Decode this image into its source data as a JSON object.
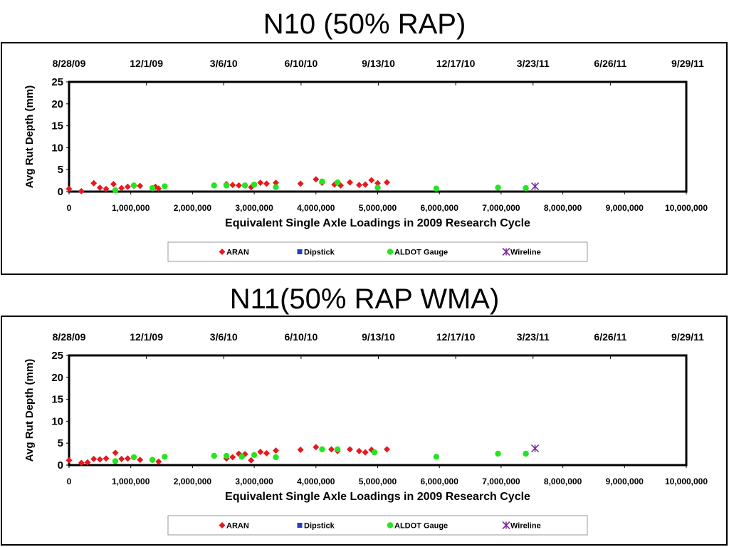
{
  "slide": {
    "title1": "N10 (50% RAP)",
    "title2": "N11(50% RAP WMA)"
  },
  "colors": {
    "aran": "#e8191e",
    "dipstick": "#1f3fc8",
    "aldot": "#22e61f",
    "wireline": "#7b2d9e"
  },
  "chart_data": [
    {
      "type": "scatter",
      "title": "N10 (50% RAP)",
      "xlabel": "Equivalent Single Axle Loadings in 2009 Research Cycle",
      "ylabel": "Avg Rut Depth (mm)",
      "xlim": [
        0,
        10000000
      ],
      "ylim": [
        0,
        25
      ],
      "x_ticks": [
        "0",
        "1,000,000",
        "2,000,000",
        "3,000,000",
        "4,000,000",
        "5,000,000",
        "6,000,000",
        "7,000,000",
        "8,000,000",
        "9,000,000",
        "10,000,000"
      ],
      "y_ticks": [
        "0",
        "5",
        "10",
        "15",
        "20",
        "25"
      ],
      "top_axis_ticks": [
        "8/28/09",
        "12/1/09",
        "3/6/10",
        "6/10/10",
        "9/13/10",
        "12/17/10",
        "3/23/11",
        "6/26/11",
        "9/29/11"
      ],
      "grid": false,
      "legend_position": "bottom",
      "series": [
        {
          "name": "ARAN",
          "marker": "diamond",
          "color": "#e8191e",
          "x": [
            0,
            200000,
            400000,
            500000,
            600000,
            720000,
            850000,
            950000,
            1050000,
            1150000,
            1400000,
            1450000,
            2550000,
            2650000,
            2750000,
            2950000,
            3100000,
            3200000,
            3350000,
            3750000,
            4000000,
            4100000,
            4300000,
            4400000,
            4550000,
            4700000,
            4800000,
            4900000,
            5000000,
            5150000
          ],
          "y": [
            0.6,
            0.1,
            1.9,
            0.9,
            0.6,
            1.7,
            0.8,
            1.1,
            1.3,
            1.3,
            1.1,
            0.7,
            1.7,
            1.5,
            1.4,
            1.0,
            2.0,
            1.8,
            2.0,
            1.8,
            2.8,
            2.0,
            1.6,
            1.4,
            2.1,
            1.5,
            1.6,
            2.6,
            1.9,
            2.1
          ]
        },
        {
          "name": "Dipstick",
          "marker": "square",
          "color": "#1f3fc8",
          "x": [],
          "y": []
        },
        {
          "name": "ALDOT Gauge",
          "marker": "circle",
          "color": "#22e61f",
          "x": [
            750000,
            1050000,
            1350000,
            1550000,
            2350000,
            2550000,
            2850000,
            3000000,
            3350000,
            4100000,
            4350000,
            5000000,
            5950000,
            6950000,
            7400000
          ],
          "y": [
            0.3,
            1.4,
            0.8,
            1.2,
            1.4,
            1.4,
            1.4,
            1.6,
            1.0,
            2.3,
            2.1,
            0.9,
            0.7,
            0.9,
            0.8
          ]
        },
        {
          "name": "Wireline",
          "marker": "asterisk",
          "color": "#7b2d9e",
          "x": [
            7550000
          ],
          "y": [
            1.2
          ]
        }
      ]
    },
    {
      "type": "scatter",
      "title": "N11(50% RAP WMA)",
      "xlabel": "Equivalent Single Axle Loadings in 2009 Research Cycle",
      "ylabel": "Avg Rut Depth (mm)",
      "xlim": [
        0,
        10000000
      ],
      "ylim": [
        0,
        25
      ],
      "x_ticks": [
        "0",
        "1,000,000",
        "2,000,000",
        "3,000,000",
        "4,000,000",
        "5,000,000",
        "6,000,000",
        "7,000,000",
        "8,000,000",
        "9,000,000",
        "10,000,000"
      ],
      "y_ticks": [
        "0",
        "5",
        "10",
        "15",
        "20",
        "25"
      ],
      "top_axis_ticks": [
        "8/28/09",
        "12/1/09",
        "3/6/10",
        "6/10/10",
        "9/13/10",
        "12/17/10",
        "3/23/11",
        "6/26/11",
        "9/29/11"
      ],
      "grid": false,
      "legend_position": "bottom",
      "series": [
        {
          "name": "ARAN",
          "marker": "diamond",
          "color": "#e8191e",
          "x": [
            0,
            200000,
            300000,
            400000,
            500000,
            600000,
            750000,
            850000,
            950000,
            1150000,
            1350000,
            1450000,
            2550000,
            2650000,
            2750000,
            2850000,
            2950000,
            3100000,
            3200000,
            3350000,
            3750000,
            4000000,
            4250000,
            4350000,
            4550000,
            4700000,
            4800000,
            4900000,
            5150000
          ],
          "y": [
            1.1,
            0.5,
            0.6,
            1.4,
            1.3,
            1.5,
            2.8,
            1.4,
            1.5,
            1.2,
            1.2,
            0.8,
            1.5,
            1.8,
            2.6,
            2.5,
            1.1,
            3.0,
            2.7,
            3.3,
            3.5,
            4.1,
            3.6,
            3.2,
            3.6,
            3.2,
            2.9,
            3.5,
            3.6
          ]
        },
        {
          "name": "Dipstick",
          "marker": "square",
          "color": "#1f3fc8",
          "x": [],
          "y": []
        },
        {
          "name": "ALDOT Gauge",
          "marker": "circle",
          "color": "#22e61f",
          "x": [
            750000,
            1050000,
            1350000,
            1550000,
            2350000,
            2550000,
            2800000,
            3000000,
            3350000,
            4100000,
            4350000,
            4950000,
            5950000,
            6950000,
            7400000
          ],
          "y": [
            0.9,
            1.8,
            1.2,
            1.9,
            2.1,
            2.1,
            1.9,
            2.3,
            1.8,
            3.6,
            3.6,
            2.9,
            1.9,
            2.6,
            2.6
          ]
        },
        {
          "name": "Wireline",
          "marker": "asterisk",
          "color": "#7b2d9e",
          "x": [
            7550000
          ],
          "y": [
            3.8
          ]
        }
      ]
    }
  ]
}
